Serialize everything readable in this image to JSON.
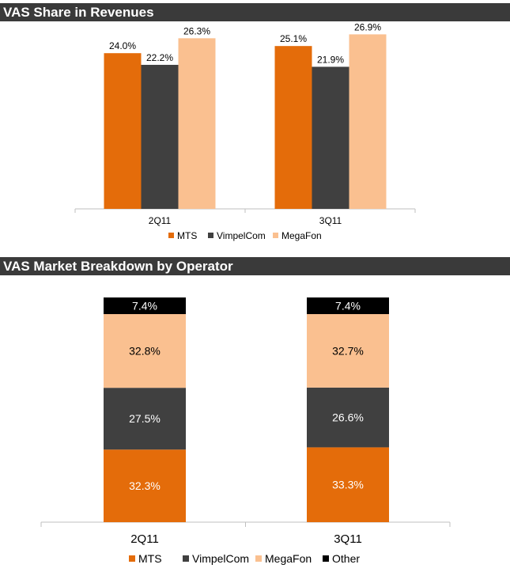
{
  "chart_data": [
    {
      "type": "bar",
      "title": "VAS Share in Revenues",
      "categories": [
        "2Q11",
        "3Q11"
      ],
      "series": [
        {
          "name": "MTS",
          "values": [
            24.0,
            25.1
          ],
          "color": "#e46c0a"
        },
        {
          "name": "VimpelCom",
          "values": [
            22.2,
            21.9
          ],
          "color": "#404040"
        },
        {
          "name": "MegaFon",
          "values": [
            26.3,
            26.9
          ],
          "color": "#fac090"
        }
      ],
      "value_labels": [
        [
          "24.0%",
          "25.1%"
        ],
        [
          "22.2%",
          "21.9%"
        ],
        [
          "26.3%",
          "26.9%"
        ]
      ],
      "ylim": [
        0,
        30
      ],
      "legend": "bottom",
      "grid": false
    },
    {
      "type": "bar",
      "stacked": true,
      "title": "VAS Market Breakdown by Operator",
      "categories": [
        "2Q11",
        "3Q11"
      ],
      "series": [
        {
          "name": "MTS",
          "values": [
            32.3,
            33.3
          ],
          "color": "#e46c0a",
          "label_color": "#ffffff"
        },
        {
          "name": "VimpelCom",
          "values": [
            27.5,
            26.6
          ],
          "color": "#404040",
          "label_color": "#ffffff"
        },
        {
          "name": "MegaFon",
          "values": [
            32.8,
            32.7
          ],
          "color": "#fac090",
          "label_color": "#000000"
        },
        {
          "name": "Other",
          "values": [
            7.4,
            7.4
          ],
          "color": "#000000",
          "label_color": "#ffffff"
        }
      ],
      "value_labels": [
        [
          "32.3%",
          "33.3%"
        ],
        [
          "27.5%",
          "26.6%"
        ],
        [
          "32.8%",
          "32.7%"
        ],
        [
          "7.4%",
          "7.4%"
        ]
      ],
      "ylim": [
        0,
        100
      ],
      "legend": "bottom",
      "grid": false
    }
  ]
}
